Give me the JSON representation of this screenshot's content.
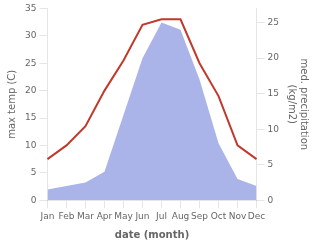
{
  "chart_data": {
    "type": "line",
    "categories": [
      "Jan",
      "Feb",
      "Mar",
      "Apr",
      "May",
      "Jun",
      "Jul",
      "Aug",
      "Sep",
      "Oct",
      "Nov",
      "Dec"
    ],
    "xlabel": "date (month)",
    "ylabel": "max temp (C)",
    "y2label": "med. precipitation\n(kg/m2)",
    "series": [
      {
        "type": "area",
        "color": "#aab4e8",
        "axis": "y2",
        "values": [
          1.5,
          2.0,
          2.5,
          4.0,
          12.0,
          20.0,
          25.0,
          24.0,
          17.0,
          8.0,
          3.0,
          2.0
        ]
      },
      {
        "type": "line",
        "color": "#c0392b",
        "values": [
          7.5,
          10.0,
          13.5,
          20.0,
          25.5,
          32.0,
          33.0,
          33.0,
          25.0,
          19.0,
          10.0,
          7.5
        ]
      }
    ],
    "ylim": [
      0,
      35
    ],
    "yticks": [
      0,
      5,
      10,
      15,
      20,
      25,
      30,
      35
    ],
    "y2lim": [
      0,
      27
    ],
    "y2ticks": [
      0,
      5,
      10,
      15,
      20,
      25
    ],
    "grid": false
  }
}
